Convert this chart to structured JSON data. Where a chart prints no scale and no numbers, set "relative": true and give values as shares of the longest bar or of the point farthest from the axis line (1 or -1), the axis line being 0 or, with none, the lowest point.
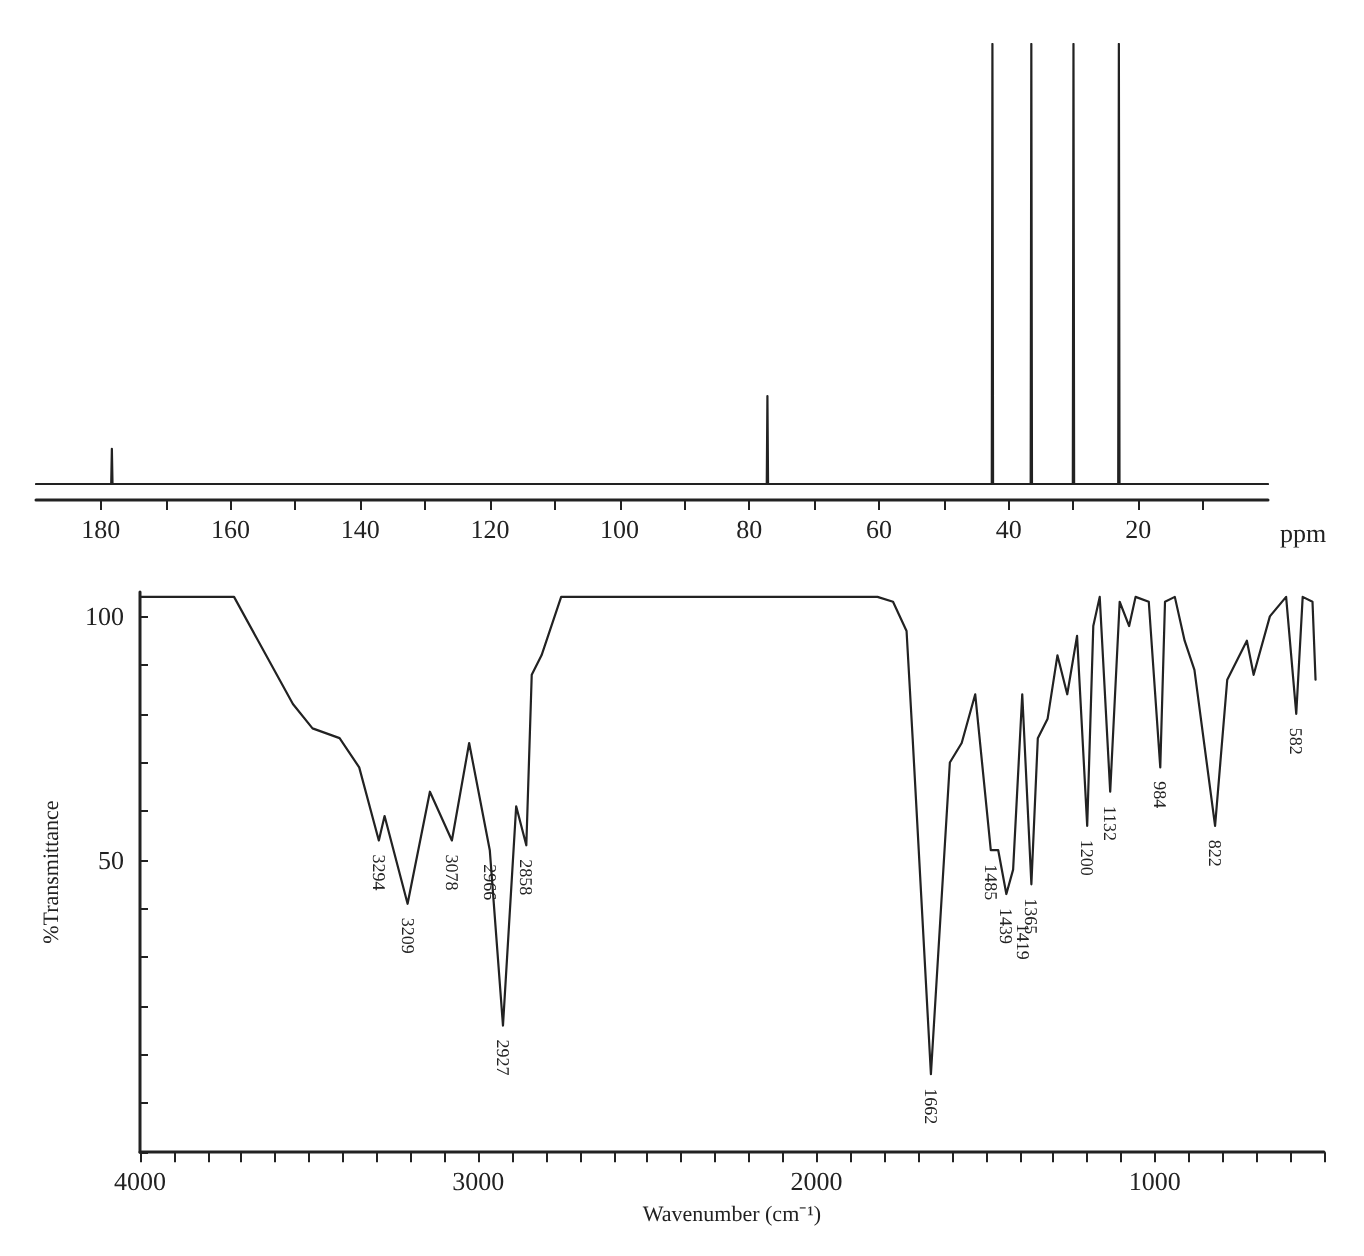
{
  "chart_data": [
    {
      "type": "line",
      "relative": true,
      "xlabel": "ppm",
      "marker": "none",
      "grid": false,
      "xlim": [
        190,
        0
      ],
      "xticks": [
        180,
        {
          "value": 170,
          "label": null
        },
        160,
        {
          "value": 150,
          "label": null
        },
        140,
        {
          "value": 130,
          "label": null
        },
        120,
        {
          "value": 110,
          "label": null
        },
        100,
        {
          "value": 90,
          "label": null
        },
        80,
        {
          "value": 70,
          "label": null
        },
        60,
        {
          "value": 50,
          "label": null
        },
        40,
        {
          "value": 30,
          "label": null
        },
        20,
        {
          "value": 10,
          "label": null
        }
      ],
      "x": [
        190,
        178.4,
        178.3,
        178.2,
        77.3,
        77.2,
        77.1,
        42.6,
        42.5,
        42.4,
        36.6,
        36.5,
        36.4,
        30.1,
        30,
        29.9,
        23.1,
        23,
        22.9,
        0
      ],
      "values": [
        0,
        0,
        0.08,
        0,
        0,
        0.2,
        0,
        0,
        1,
        0,
        0,
        1,
        0,
        0,
        1,
        0,
        0,
        1,
        0,
        0
      ]
    },
    {
      "type": "line",
      "xlabel": "Wavenumber (cm⁻¹)",
      "ylabel": "%Transmittance",
      "marker": "none",
      "grid": false,
      "xlim": [
        4000,
        500
      ],
      "ylim": [
        -10,
        105
      ],
      "xticks": [
        4000,
        {
          "value": 3900,
          "label": null
        },
        {
          "value": 3800,
          "label": null
        },
        {
          "value": 3700,
          "label": null
        },
        {
          "value": 3600,
          "label": null
        },
        {
          "value": 3500,
          "label": null
        },
        {
          "value": 3400,
          "label": null
        },
        {
          "value": 3300,
          "label": null
        },
        {
          "value": 3200,
          "label": null
        },
        {
          "value": 3100,
          "label": null
        },
        3000,
        {
          "value": 2900,
          "label": null
        },
        {
          "value": 2800,
          "label": null
        },
        {
          "value": 2700,
          "label": null
        },
        {
          "value": 2600,
          "label": null
        },
        {
          "value": 2500,
          "label": null
        },
        {
          "value": 2400,
          "label": null
        },
        {
          "value": 2300,
          "label": null
        },
        {
          "value": 2200,
          "label": null
        },
        {
          "value": 2100,
          "label": null
        },
        2000,
        {
          "value": 1900,
          "label": null
        },
        {
          "value": 1800,
          "label": null
        },
        {
          "value": 1700,
          "label": null
        },
        {
          "value": 1600,
          "label": null
        },
        {
          "value": 1500,
          "label": null
        },
        {
          "value": 1400,
          "label": null
        },
        {
          "value": 1300,
          "label": null
        },
        {
          "value": 1200,
          "label": null
        },
        {
          "value": 1100,
          "label": null
        },
        1000,
        {
          "value": 900,
          "label": null
        },
        {
          "value": 800,
          "label": null
        },
        {
          "value": 700,
          "label": null
        },
        {
          "value": 600,
          "label": null
        },
        {
          "value": 500,
          "label": null
        }
      ],
      "yticks": [
        {
          "value": -10,
          "label": null
        },
        {
          "value": 0,
          "label": null
        },
        {
          "value": 10,
          "label": null
        },
        {
          "value": 20,
          "label": null
        },
        {
          "value": 30,
          "label": null
        },
        {
          "value": 40,
          "label": null
        },
        50,
        {
          "value": 60,
          "label": null
        },
        {
          "value": 70,
          "label": null
        },
        {
          "value": 80,
          "label": null
        },
        {
          "value": 90,
          "label": null
        },
        100
      ],
      "x": [
        4000,
        3722,
        3548,
        3490,
        3410,
        3352,
        3294,
        3277,
        3209,
        3143,
        3078,
        3027,
        2966,
        2927,
        2888,
        2858,
        2842,
        2813,
        2755,
        1820,
        1774,
        1734,
        1716,
        1662,
        1606,
        1571,
        1531,
        1485,
        1463,
        1439,
        1419,
        1392,
        1365,
        1346,
        1317,
        1288,
        1259,
        1230,
        1200,
        1182,
        1163,
        1132,
        1104,
        1076,
        1057,
        1018,
        984,
        970,
        941,
        912,
        883,
        822,
        786,
        728,
        708,
        660,
        612,
        582,
        563,
        534,
        525
      ],
      "values": [
        104,
        104,
        82,
        77,
        75,
        69,
        54,
        59,
        41,
        64,
        54,
        74,
        52,
        16,
        61,
        53,
        88,
        92,
        104,
        104,
        103,
        97,
        75,
        6,
        70,
        74,
        84,
        52,
        52,
        43,
        48,
        84,
        45,
        75,
        79,
        92,
        84,
        96,
        57,
        98,
        104,
        64,
        103,
        98,
        104,
        103,
        69,
        103,
        104,
        95,
        89,
        57,
        87,
        95,
        88,
        100,
        104,
        80,
        104,
        103,
        87
      ],
      "annotations": [
        {
          "text": "3294",
          "x": 3294,
          "y": 54
        },
        {
          "text": "3209",
          "x": 3209,
          "y": 41
        },
        {
          "text": "3078",
          "x": 3078,
          "y": 54
        },
        {
          "text": "2966",
          "x": 2966,
          "y": 52
        },
        {
          "text": "2927",
          "x": 2927,
          "y": 16
        },
        {
          "text": "2858",
          "x": 2858,
          "y": 53
        },
        {
          "text": "1662",
          "x": 1662,
          "y": 6
        },
        {
          "text": "1485",
          "x": 1485,
          "y": 52
        },
        {
          "text": "1439",
          "x": 1439,
          "y": 43
        },
        {
          "text": "1419",
          "x": 1419,
          "y": 48
        },
        {
          "text": "1365",
          "x": 1365,
          "y": 45
        },
        {
          "text": "1200",
          "x": 1200,
          "y": 57
        },
        {
          "text": "1132",
          "x": 1132,
          "y": 64
        },
        {
          "text": "984",
          "x": 984,
          "y": 69
        },
        {
          "text": "822",
          "x": 822,
          "y": 57
        },
        {
          "text": "582",
          "x": 582,
          "y": 80
        }
      ]
    }
  ]
}
